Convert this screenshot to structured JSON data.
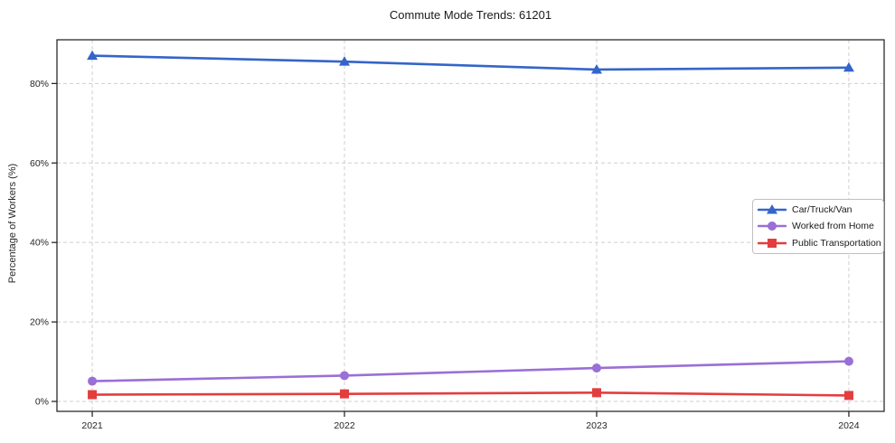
{
  "chart_data": {
    "type": "line",
    "title": "Commute Mode Trends: 61201",
    "xlabel": "",
    "ylabel": "Percentage of Workers (%)",
    "x": [
      2021,
      2022,
      2023,
      2024
    ],
    "x_tick_labels": [
      "2021",
      "2022",
      "2023",
      "2024"
    ],
    "y_ticks": [
      0,
      20,
      40,
      60,
      80
    ],
    "y_tick_labels": [
      "0%",
      "20%",
      "40%",
      "60%",
      "80%"
    ],
    "xlim": [
      2020.86,
      2024.14
    ],
    "ylim": [
      -2.5,
      91
    ],
    "grid": true,
    "grid_style": "dashed",
    "legend_position": "center-right",
    "series": [
      {
        "name": "Car/Truck/Van",
        "color": "#3465c9",
        "marker": "triangle",
        "values": [
          87.0,
          85.5,
          83.5,
          84.0
        ]
      },
      {
        "name": "Worked from Home",
        "color": "#9a6fd6",
        "marker": "circle",
        "values": [
          5.1,
          6.5,
          8.4,
          10.1
        ]
      },
      {
        "name": "Public Transportation",
        "color": "#e33e3e",
        "marker": "square",
        "values": [
          1.7,
          1.9,
          2.2,
          1.5
        ]
      }
    ],
    "colors": {
      "grid": "#cfcfcf",
      "axis": "#1a1a1a",
      "tick_label": "#262626",
      "background": "#ffffff"
    }
  }
}
